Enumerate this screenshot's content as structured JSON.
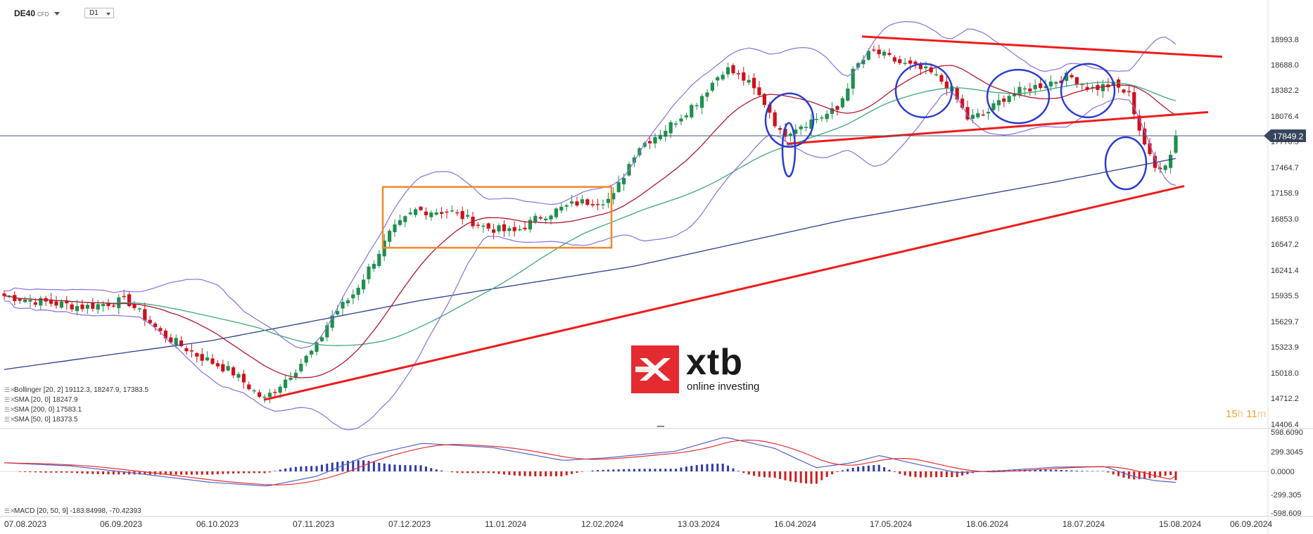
{
  "header": {
    "symbol": "DE40",
    "instrument_type": "CFD",
    "timeframe": "D1"
  },
  "price_axis": [
    "18993.8",
    "18688.0",
    "18382.2",
    "18076.4",
    "17770.5",
    "17464.7",
    "17158.9",
    "16853.0",
    "16547.2",
    "16241.4",
    "15935.5",
    "15629.7",
    "15323.9",
    "15018.0",
    "14712.2",
    "14406.4"
  ],
  "current_price": "17849.2",
  "macd_axis": [
    "598.6090",
    "299.3045",
    "0.0000",
    "-299.305",
    "-598.609"
  ],
  "date_axis": [
    "07.08.2023",
    "06.09.2023",
    "06.10.2023",
    "07.11.2023",
    "07.12.2023",
    "11.01.2024",
    "12.02.2024",
    "13.03.2024",
    "16.04.2024",
    "17.05.2024",
    "18.06.2024",
    "18.07.2024",
    "15.08.2024",
    "06.09.2024"
  ],
  "legend": [
    {
      "label": "Bollinger  [20, 2]  19112.3,   18247.9,   17383.5"
    },
    {
      "label": "SMA  [20,  0]  18247.9"
    },
    {
      "label": "SMA  [200,  0]  17583.1"
    },
    {
      "label": "SMA  [50,  0]  18373.5"
    }
  ],
  "macd_legend": "MACD  [20, 50, 9]  -183.84998,   -70.42393",
  "timer": {
    "hours": "15",
    "h": "h",
    "minutes": "11",
    "m": "m"
  },
  "logo": {
    "word": "xtb",
    "tagline": "online investing"
  },
  "colors": {
    "bull": "#1f8f4e",
    "bear": "#d0101a",
    "bollinger": "#8a6fe0",
    "sma20": "#b01830",
    "sma50": "#3ea87a",
    "sma200": "#2e3d8f",
    "trendline": "#ee1c1c",
    "box": "#f0882c",
    "circle": "#2a3bd0",
    "macd_line": "#5560c8",
    "signal_line": "#e63030"
  },
  "chart_data": {
    "type": "line",
    "ylim": [
      14406.4,
      18993.8
    ],
    "x_dates": [
      "07.08.2023",
      "06.09.2023",
      "06.10.2023",
      "07.11.2023",
      "07.12.2023",
      "11.01.2024",
      "12.02.2024",
      "13.03.2024",
      "16.04.2024",
      "17.05.2024",
      "18.06.2024",
      "18.07.2024",
      "15.08.2024",
      "06.09.2024"
    ],
    "series": [
      {
        "name": "DE40",
        "dates": [
          "07.08.2023",
          "06.09.2023",
          "06.10.2023",
          "27.10.2023",
          "07.11.2023",
          "07.12.2023",
          "11.01.2024",
          "12.02.2024",
          "13.03.2024",
          "16.04.2024",
          "17.05.2024",
          "18.06.2024",
          "18.07.2024",
          "05.08.2024",
          "08.08.2024"
        ],
        "values": [
          15950,
          15800,
          15250,
          14700,
          15450,
          16700,
          16680,
          17100,
          18100,
          17750,
          18650,
          18150,
          18420,
          17350,
          17849.2
        ]
      }
    ],
    "current_value": 17849.2,
    "macd": {
      "macd": -183.84998,
      "signal": -70.42393,
      "ylim": [
        -598.609,
        598.609
      ]
    }
  }
}
